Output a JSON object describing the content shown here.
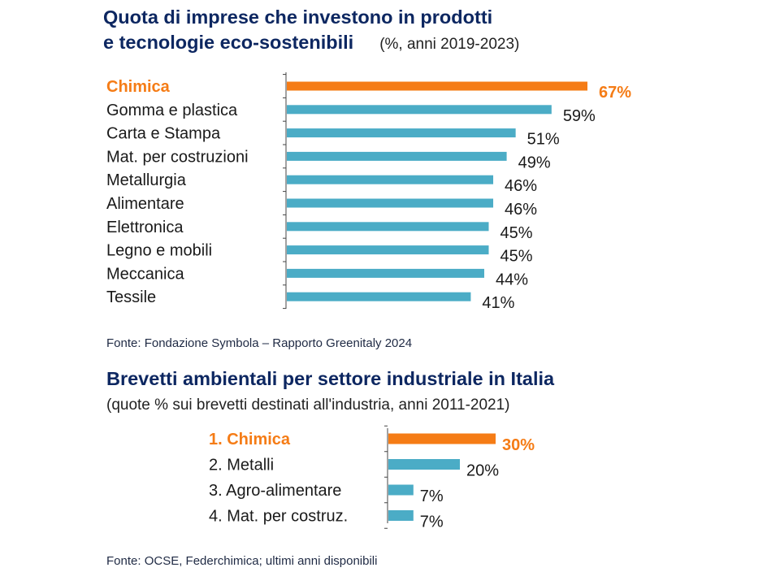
{
  "colors": {
    "highlight": "#f57c16",
    "bar": "#4bacc6",
    "title": "#0d2761"
  },
  "chart1": {
    "title_line1": "Quota di imprese che investono in prodotti",
    "title_line2": "e tecnologie eco-sostenibili",
    "subtitle": "(%, anni 2019-2023)",
    "source": "Fonte: Fondazione Symbola – Rapporto Greenitaly 2024"
  },
  "chart2": {
    "title": "Brevetti ambientali per settore industriale in Italia",
    "subtitle": "(quote % sui brevetti destinati all'industria, anni 2011-2021)",
    "source": "Fonte: OCSE, Federchimica; ultimi anni disponibili"
  },
  "chart_data": [
    {
      "type": "bar",
      "orientation": "horizontal",
      "title": "Quota di imprese che investono in prodotti e tecnologie eco-sostenibili",
      "subtitle": "(%, anni 2019-2023)",
      "categories": [
        "Chimica",
        "Gomma e plastica",
        "Carta e Stampa",
        "Mat. per costruzioni",
        "Metallurgia",
        "Alimentare",
        "Elettronica",
        "Legno e mobili",
        "Meccanica",
        "Tessile"
      ],
      "values": [
        67,
        59,
        51,
        49,
        46,
        46,
        45,
        45,
        44,
        41
      ],
      "value_labels": [
        "67%",
        "59%",
        "51%",
        "49%",
        "46%",
        "46%",
        "45%",
        "45%",
        "44%",
        "41%"
      ],
      "highlight_index": 0,
      "xlim": [
        0,
        67
      ],
      "grid": false
    },
    {
      "type": "bar",
      "orientation": "horizontal",
      "title": "Brevetti ambientali per settore industriale in Italia",
      "subtitle": "(quote % sui brevetti destinati all'industria, anni 2011-2021)",
      "categories": [
        "1. Chimica",
        "2. Metalli",
        "3. Agro-alimentare",
        "4. Mat. per costruz."
      ],
      "values": [
        30,
        20,
        7,
        7
      ],
      "value_labels": [
        "30%",
        "20%",
        "7%",
        "7%"
      ],
      "highlight_index": 0,
      "xlim": [
        0,
        30
      ],
      "grid": false
    }
  ]
}
